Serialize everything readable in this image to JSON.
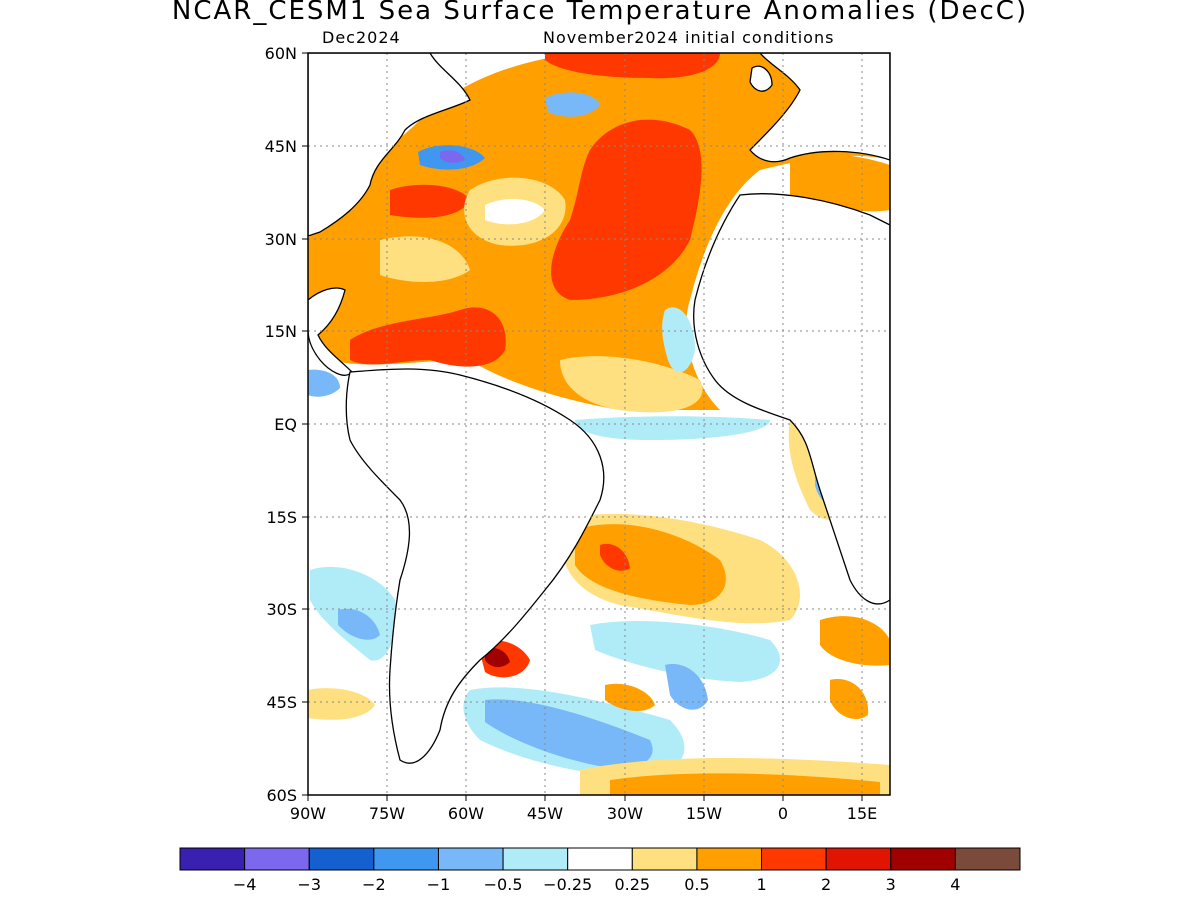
{
  "header": {
    "title": "NCAR_CESM1 Sea Surface Temperature Anomalies (DecC)",
    "target_month": "Dec2024",
    "init": "November2024 initial conditions"
  },
  "map": {
    "lon_range": [
      -90,
      20
    ],
    "lat_range": [
      -60,
      60
    ],
    "lat_ticks": [
      "60N",
      "45N",
      "30N",
      "15N",
      "EQ",
      "15S",
      "30S",
      "45S",
      "60S"
    ],
    "lon_ticks": [
      "90W",
      "75W",
      "60W",
      "45W",
      "30W",
      "15W",
      "0",
      "15E"
    ],
    "gridlines": "dotted"
  },
  "colorbar": {
    "colors": [
      "#3a20b0",
      "#7b68ee",
      "#1560d0",
      "#3f97f0",
      "#78b8f8",
      "#b0ecf8",
      "#ffffff",
      "#ffe080",
      "#ffa000",
      "#ff3800",
      "#e01400",
      "#a00000",
      "#7a4a3a"
    ],
    "labels": [
      "−4",
      "−3",
      "−2",
      "−1",
      "−0.5",
      "−0.25",
      "0.25",
      "0.5",
      "1",
      "2",
      "3",
      "4"
    ]
  }
}
